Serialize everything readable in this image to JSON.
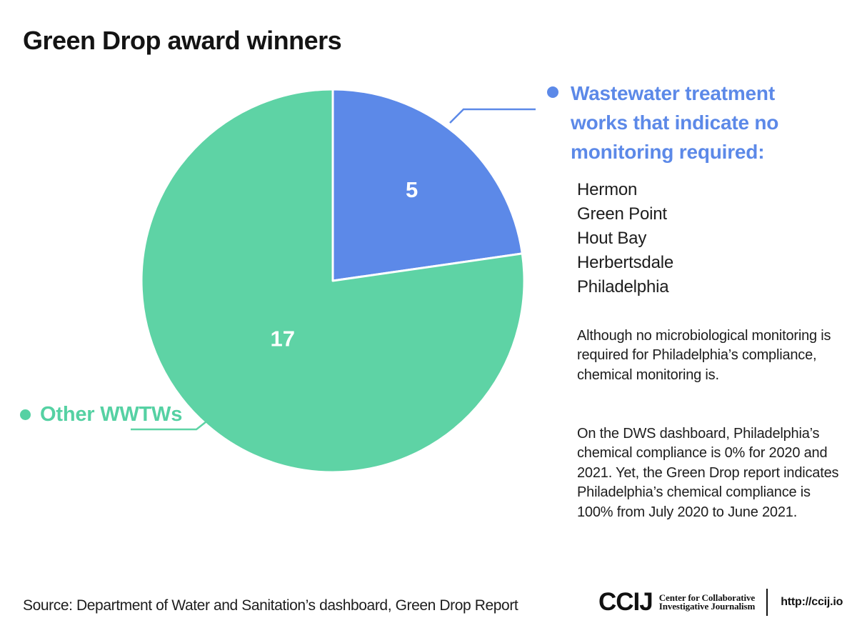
{
  "title": "Green Drop award winners",
  "chart_data": {
    "type": "pie",
    "title": "Green Drop award winners",
    "total": 22,
    "direction": "clockwise",
    "start_angle_deg": 0,
    "slices": [
      {
        "label": "Wastewater treatment works that indicate no monitoring required",
        "value": 5,
        "color": "#5c89e8",
        "value_label": "5"
      },
      {
        "label": "Other WWTWs",
        "value": 17,
        "color": "#5ed3a5",
        "value_label": "17"
      }
    ],
    "value_label_color": "#ffffff",
    "legend_position": "right-and-left-callouts"
  },
  "legend_blue": {
    "lines": [
      "Wastewater treatment",
      "works that indicate no",
      "monitoring required:"
    ],
    "color": "#5c89e8",
    "items": [
      "Hermon",
      "Green Point",
      "Hout Bay",
      "Herbertsdale",
      "Philadelphia"
    ]
  },
  "legend_green": {
    "label": "Other WWTWs",
    "color": "#55d1a3"
  },
  "annotations": {
    "para1": "Although no microbiological monitoring is required for Philadelphia’s compliance, chemical monitoring is.",
    "para2": "On the DWS dashboard, Philadelphia’s chemical compliance is 0% for 2020 and 2021. Yet, the Green Drop report indicates Philadelphia’s chemical compliance is 100% from July 2020 to June 2021."
  },
  "footer": {
    "source": "Source: Department of Water and Sanitation’s dashboard, Green Drop Report",
    "logo_name": "CCIJ",
    "logo_tagline_line1": "Center for Collaborative",
    "logo_tagline_line2": "Investigative Journalism",
    "logo_url": "http://ccij.io"
  },
  "colors": {
    "green": "#5ed3a5",
    "blue": "#5c89e8",
    "text": "#1d1d1d",
    "background": "#ffffff"
  }
}
